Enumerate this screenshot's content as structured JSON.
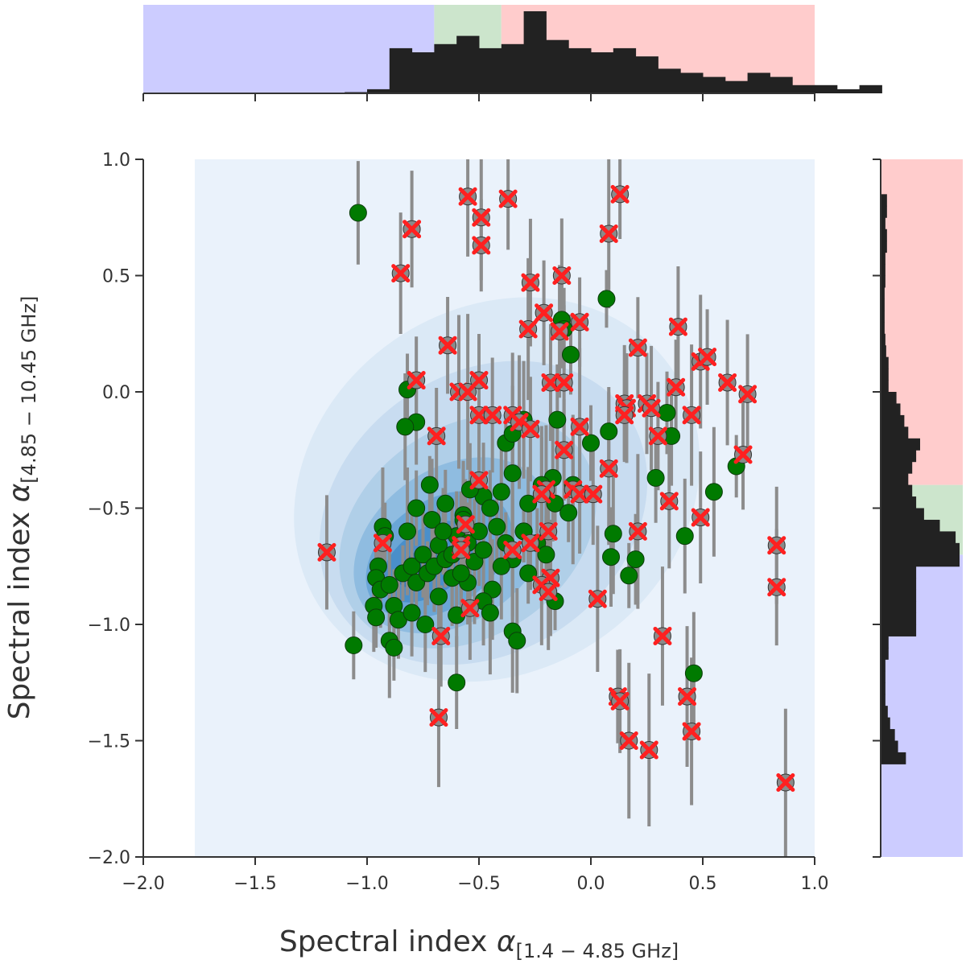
{
  "chart_data": {
    "type": "scatter",
    "title": "",
    "xlabel": "Spectral index α[1.4 − 4.85 GHz]",
    "ylabel": "Spectral index α[4.85 − 10.45 GHz]",
    "xlim": [
      -2.0,
      1.0
    ],
    "ylim": [
      -2.0,
      1.0
    ],
    "x_ticks": [
      "−2.0",
      "−1.5",
      "−1.0",
      "−0.5",
      "0.0",
      "0.5",
      "1.0"
    ],
    "y_ticks": [
      "1.0",
      "0.5",
      "0.0",
      "−0.5",
      "−1.0",
      "−1.5",
      "−2.0"
    ],
    "regions": {
      "steep": {
        "range": [
          -2.0,
          -0.7
        ],
        "color": "#ccccff"
      },
      "flat": {
        "range": [
          -0.7,
          -0.4
        ],
        "color": "#cce5cc"
      },
      "inverted": {
        "range": [
          -0.4,
          1.0
        ],
        "color": "#ffcccc"
      }
    },
    "colors": {
      "green_points": "#007a00",
      "cross_markers": "#ff2020",
      "error_bars": "#8c8c8c",
      "histogram": "#222222",
      "kde_background": "#eaf2fb"
    },
    "kde_levels": [
      {
        "cx": -0.42,
        "cy": -0.42,
        "rx": 0.95,
        "ry": 0.78,
        "rot": 35,
        "color": "#dbe9f6"
      },
      {
        "cx": -0.48,
        "cy": -0.52,
        "rx": 0.78,
        "ry": 0.6,
        "rot": 35,
        "color": "#c8dcf0"
      },
      {
        "cx": -0.55,
        "cy": -0.6,
        "rx": 0.62,
        "ry": 0.45,
        "rot": 35,
        "color": "#b0cfe8"
      },
      {
        "cx": -0.62,
        "cy": -0.66,
        "rx": 0.48,
        "ry": 0.33,
        "rot": 35,
        "color": "#8fbce0"
      },
      {
        "cx": -0.68,
        "cy": -0.7,
        "rx": 0.36,
        "ry": 0.23,
        "rot": 35,
        "color": "#6aa6d6"
      },
      {
        "cx": -0.72,
        "cy": -0.73,
        "rx": 0.24,
        "ry": 0.14,
        "rot": 35,
        "color": "#4a8fca"
      },
      {
        "cx": -0.75,
        "cy": -0.75,
        "rx": 0.13,
        "ry": 0.07,
        "rot": 35,
        "color": "#2f78bb"
      }
    ],
    "hist_x": {
      "bin_start": -1.1,
      "bin_width": 0.1,
      "counts": [
        0.3,
        1,
        11,
        10,
        12,
        14,
        11,
        12,
        20,
        13,
        11,
        10,
        11,
        9,
        6,
        5,
        4,
        3,
        5,
        4,
        2,
        2,
        1,
        2
      ]
    },
    "hist_y": {
      "bin_start": -1.6,
      "bin_width": 0.05,
      "counts": [
        3.2,
        2.2,
        1.8,
        1.2,
        0.9,
        0.6,
        0.6,
        0.6,
        0.6,
        1,
        1,
        4.5,
        4.5,
        4.5,
        4.5,
        4.5,
        4.5,
        10,
        10,
        9.5,
        7.5,
        5.5,
        4.5,
        4,
        3.5,
        4,
        4.5,
        5,
        3.5,
        3,
        2.5,
        2,
        1,
        1,
        1,
        0.7,
        0.6,
        0.5,
        0.5,
        0.5,
        0.5,
        0.6,
        0.6,
        0.6,
        0.8,
        0.8,
        0.6,
        0.8,
        0.8
      ]
    },
    "green_points": [
      [
        -1.04,
        0.77
      ],
      [
        -0.13,
        0.31
      ],
      [
        0.07,
        0.4
      ],
      [
        -0.09,
        0.16
      ],
      [
        -0.12,
        0.27
      ],
      [
        -0.82,
        0.01
      ],
      [
        -0.78,
        -0.13
      ],
      [
        -0.83,
        -0.15
      ],
      [
        -0.15,
        -0.12
      ],
      [
        0.0,
        -0.22
      ],
      [
        -0.17,
        -0.37
      ],
      [
        -0.08,
        -0.4
      ],
      [
        0.34,
        -0.09
      ],
      [
        0.36,
        -0.19
      ],
      [
        0.08,
        -0.17
      ],
      [
        0.65,
        -0.32
      ],
      [
        0.55,
        -0.43
      ],
      [
        0.29,
        -0.37
      ],
      [
        0.1,
        -0.61
      ],
      [
        0.09,
        -0.71
      ],
      [
        0.2,
        -0.72
      ],
      [
        0.17,
        -0.79
      ],
      [
        0.42,
        -0.62
      ],
      [
        0.46,
        -1.21
      ],
      [
        -0.78,
        -0.5
      ],
      [
        -0.72,
        -0.4
      ],
      [
        -0.65,
        -0.48
      ],
      [
        -0.57,
        -0.53
      ],
      [
        -0.48,
        -0.45
      ],
      [
        -0.4,
        -0.43
      ],
      [
        -0.35,
        -0.35
      ],
      [
        -0.28,
        -0.48
      ],
      [
        -0.22,
        -0.4
      ],
      [
        -0.16,
        -0.48
      ],
      [
        -0.1,
        -0.52
      ],
      [
        -0.3,
        -0.6
      ],
      [
        -0.38,
        -0.22
      ],
      [
        -0.35,
        -0.18
      ],
      [
        -0.3,
        -0.12
      ],
      [
        -0.93,
        -0.58
      ],
      [
        -0.92,
        -0.62
      ],
      [
        -0.95,
        -0.75
      ],
      [
        -0.96,
        -0.8
      ],
      [
        -0.94,
        -0.85
      ],
      [
        -0.97,
        -0.92
      ],
      [
        -0.96,
        -0.97
      ],
      [
        -0.9,
        -0.83
      ],
      [
        -0.88,
        -0.92
      ],
      [
        -0.86,
        -0.98
      ],
      [
        -0.9,
        -1.07
      ],
      [
        -0.88,
        -1.1
      ],
      [
        -1.06,
        -1.09
      ],
      [
        -0.84,
        -0.78
      ],
      [
        -0.8,
        -0.75
      ],
      [
        -0.78,
        -0.82
      ],
      [
        -0.75,
        -0.7
      ],
      [
        -0.73,
        -0.78
      ],
      [
        -0.7,
        -0.75
      ],
      [
        -0.68,
        -0.66
      ],
      [
        -0.65,
        -0.72
      ],
      [
        -0.62,
        -0.7
      ],
      [
        -0.6,
        -0.62
      ],
      [
        -0.57,
        -0.55
      ],
      [
        -0.55,
        -0.65
      ],
      [
        -0.52,
        -0.73
      ],
      [
        -0.5,
        -0.6
      ],
      [
        -0.48,
        -0.68
      ],
      [
        -0.45,
        -0.5
      ],
      [
        -0.42,
        -0.58
      ],
      [
        -0.38,
        -0.65
      ],
      [
        -0.35,
        -0.72
      ],
      [
        -0.3,
        -0.6
      ],
      [
        -0.28,
        -0.78
      ],
      [
        -0.24,
        -0.65
      ],
      [
        -0.2,
        -0.7
      ],
      [
        -0.16,
        -0.9
      ],
      [
        -0.44,
        -0.85
      ],
      [
        -0.48,
        -0.9
      ],
      [
        -0.55,
        -0.82
      ],
      [
        -0.62,
        -0.8
      ],
      [
        -0.68,
        -0.88
      ],
      [
        -0.74,
        -1.0
      ],
      [
        -0.8,
        -0.95
      ],
      [
        -0.6,
        -0.96
      ],
      [
        -0.35,
        -1.03
      ],
      [
        -0.33,
        -1.07
      ],
      [
        -0.6,
        -1.25
      ],
      [
        -0.45,
        -0.95
      ],
      [
        -0.4,
        -0.75
      ],
      [
        -0.58,
        -0.78
      ],
      [
        -0.82,
        -0.6
      ],
      [
        -0.71,
        -0.55
      ],
      [
        -0.66,
        -0.6
      ],
      [
        -0.54,
        -0.42
      ]
    ],
    "cross_points": [
      [
        -0.55,
        0.84
      ],
      [
        -0.49,
        0.75
      ],
      [
        -0.49,
        0.63
      ],
      [
        -0.37,
        0.83
      ],
      [
        -0.8,
        0.7
      ],
      [
        -0.85,
        0.51
      ],
      [
        0.13,
        0.85
      ],
      [
        0.08,
        0.68
      ],
      [
        -0.27,
        0.47
      ],
      [
        -0.13,
        0.5
      ],
      [
        -0.21,
        0.34
      ],
      [
        -0.28,
        0.27
      ],
      [
        -0.14,
        0.26
      ],
      [
        -0.05,
        0.3
      ],
      [
        0.39,
        0.28
      ],
      [
        0.21,
        0.19
      ],
      [
        0.49,
        0.13
      ],
      [
        0.52,
        0.15
      ],
      [
        0.61,
        0.04
      ],
      [
        0.7,
        -0.01
      ],
      [
        -0.64,
        0.2
      ],
      [
        -0.78,
        0.05
      ],
      [
        -0.59,
        0.0
      ],
      [
        -0.55,
        0.0
      ],
      [
        -0.5,
        0.05
      ],
      [
        -0.18,
        0.04
      ],
      [
        -0.12,
        0.04
      ],
      [
        -0.5,
        -0.1
      ],
      [
        -0.44,
        -0.1
      ],
      [
        -0.35,
        -0.1
      ],
      [
        -0.32,
        -0.13
      ],
      [
        -0.27,
        -0.16
      ],
      [
        -0.69,
        -0.19
      ],
      [
        -0.05,
        -0.15
      ],
      [
        0.15,
        -0.05
      ],
      [
        0.25,
        -0.05
      ],
      [
        0.27,
        -0.07
      ],
      [
        0.3,
        -0.19
      ],
      [
        0.38,
        0.02
      ],
      [
        0.45,
        -0.1
      ],
      [
        0.68,
        -0.27
      ],
      [
        0.16,
        -0.07
      ],
      [
        0.15,
        -0.1
      ],
      [
        0.08,
        -0.33
      ],
      [
        -0.12,
        -0.25
      ],
      [
        -0.08,
        -0.42
      ],
      [
        -0.05,
        -0.44
      ],
      [
        0.01,
        -0.44
      ],
      [
        -0.2,
        -0.42
      ],
      [
        -0.22,
        -0.44
      ],
      [
        -0.5,
        -0.38
      ],
      [
        -0.35,
        -0.68
      ],
      [
        -0.27,
        -0.65
      ],
      [
        -0.58,
        -0.66
      ],
      [
        -0.58,
        -0.68
      ],
      [
        -0.56,
        -0.57
      ],
      [
        -0.93,
        -0.65
      ],
      [
        -1.18,
        -0.69
      ],
      [
        0.35,
        -0.47
      ],
      [
        0.49,
        -0.54
      ],
      [
        0.21,
        -0.6
      ],
      [
        -0.19,
        -0.6
      ],
      [
        -0.18,
        -0.8
      ],
      [
        -0.22,
        -0.83
      ],
      [
        -0.19,
        -0.86
      ],
      [
        0.03,
        -0.89
      ],
      [
        0.83,
        -0.66
      ],
      [
        0.83,
        -0.84
      ],
      [
        -0.54,
        -0.93
      ],
      [
        -0.67,
        -1.05
      ],
      [
        0.32,
        -1.05
      ],
      [
        0.12,
        -1.31
      ],
      [
        0.13,
        -1.33
      ],
      [
        0.43,
        -1.31
      ],
      [
        0.45,
        -1.46
      ],
      [
        0.17,
        -1.5
      ],
      [
        0.26,
        -1.54
      ],
      [
        0.87,
        -1.68
      ],
      [
        -0.68,
        -1.4
      ]
    ]
  }
}
